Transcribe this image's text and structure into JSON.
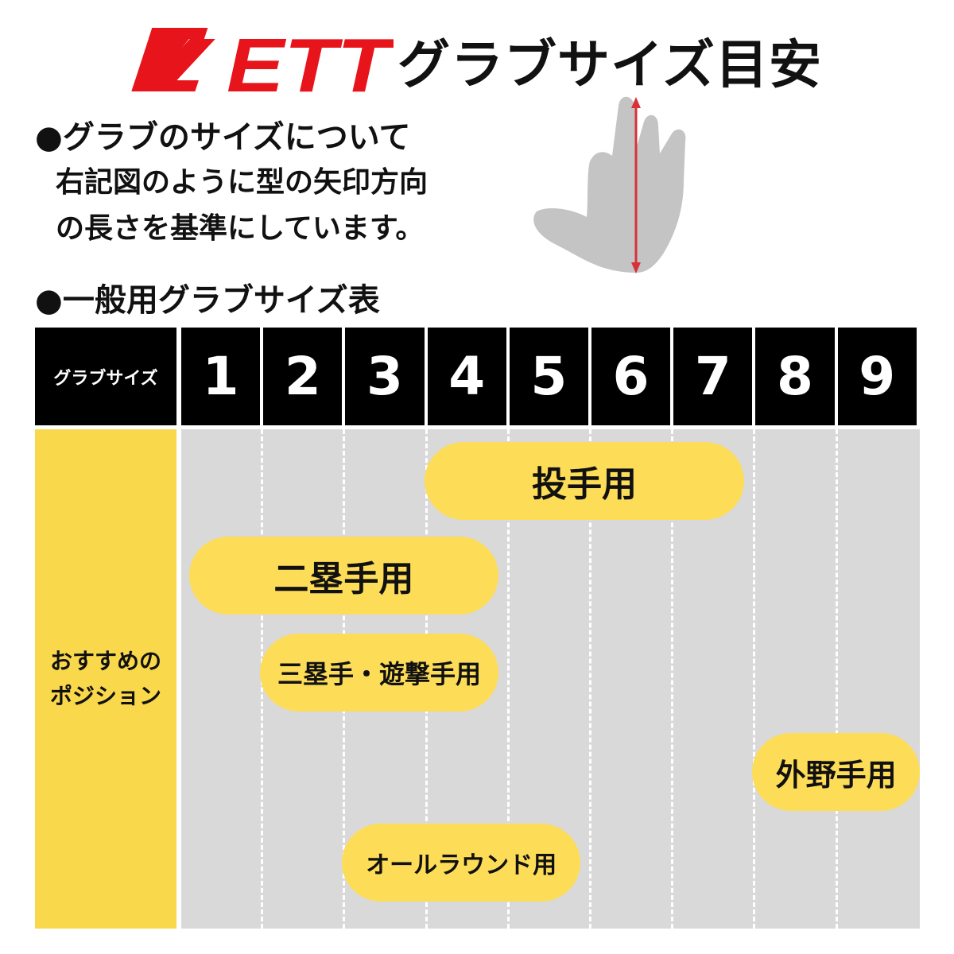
{
  "header": {
    "logo_text": "ZETT",
    "title": "グラブサイズ目安",
    "brand_color": "#e8141b"
  },
  "about": {
    "heading": "●グラブのサイズについて",
    "lines": [
      "右記図のように型の矢印方向",
      "の長さを基準にしています。"
    ]
  },
  "table": {
    "heading": "●一般用グラブサイズ表",
    "size_label": "グラブサイズ",
    "sizes": [
      "1",
      "2",
      "3",
      "4",
      "5",
      "6",
      "7",
      "8",
      "9"
    ],
    "position_label_lines": [
      "おすすめの",
      "ポジション"
    ],
    "positions": [
      {
        "label": "投手用",
        "from": 4,
        "to": 7
      },
      {
        "label": "二塁手用",
        "from": 1,
        "to": 4
      },
      {
        "label": "三塁手・遊撃手用",
        "from": 2,
        "to": 4
      },
      {
        "label": "外野手用",
        "from": 8,
        "to": 9
      },
      {
        "label": "オールラウンド用",
        "from": 3,
        "to": 5
      }
    ],
    "colors": {
      "header": "#000000",
      "body": "#d9d9d9",
      "label": "#f9d84b",
      "pill": "#fddc57"
    }
  }
}
